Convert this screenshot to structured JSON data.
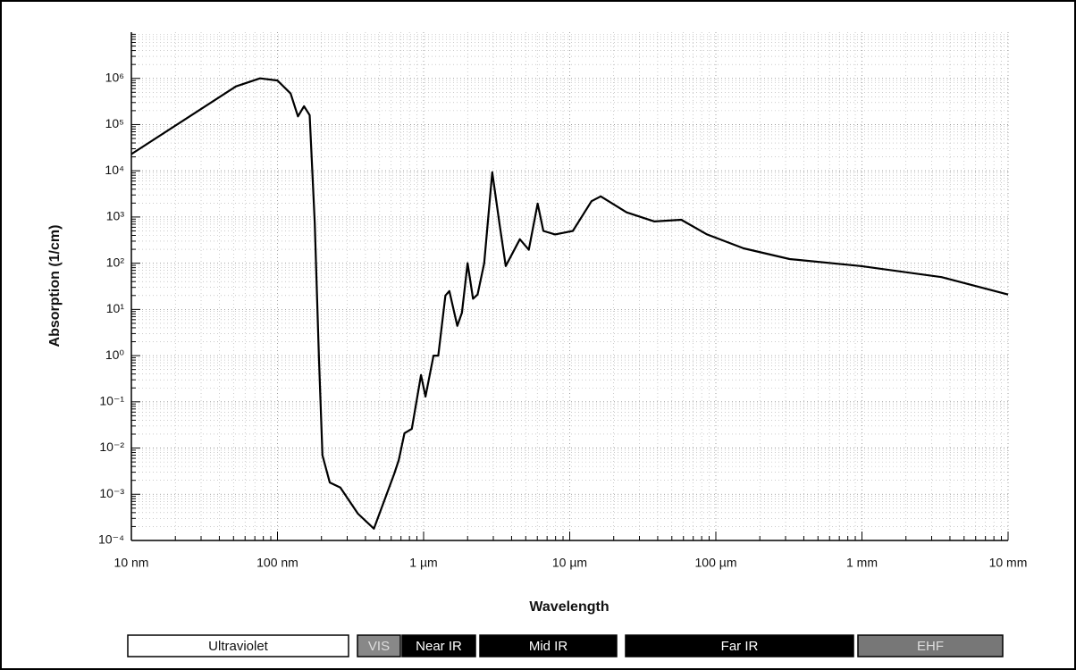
{
  "chart_data": {
    "type": "line",
    "xlabel": "Wavelength",
    "ylabel": "Absorption (1/cm)",
    "log_x": true,
    "log_y": true,
    "grid": true,
    "color": "#000000",
    "x": [
      10,
      52,
      76,
      100,
      123,
      138,
      152,
      166,
      180,
      192,
      203,
      228,
      269,
      355,
      457,
      630,
      676,
      740,
      830,
      960,
      1030,
      1170,
      1260,
      1410,
      1500,
      1700,
      1830,
      2000,
      2180,
      2340,
      2600,
      2950,
      3300,
      3650,
      4560,
      5250,
      6030,
      6600,
      7940,
      10500,
      14100,
      16300,
      24500,
      38000,
      58000,
      87000,
      155000,
      320000,
      980000,
      3500000,
      10000000
    ],
    "values": [
      23000,
      670000,
      1000000,
      900000,
      470000,
      150000,
      250000,
      160000,
      740,
      1,
      0.007,
      0.0018,
      0.0014,
      0.00038,
      0.00018,
      0.0028,
      0.0055,
      0.021,
      0.026,
      0.38,
      0.13,
      1,
      1,
      20,
      25,
      4.4,
      8.5,
      100,
      17,
      21,
      100,
      9300,
      740,
      87,
      330,
      195,
      1950,
      500,
      420,
      500,
      2200,
      2800,
      1260,
      800,
      870,
      420,
      210,
      123,
      87,
      50,
      21
    ],
    "xlim": [
      10,
      10000000
    ],
    "ylim": [
      0.0001,
      10000000
    ],
    "xticks": [
      {
        "value": 10,
        "label": "10 nm"
      },
      {
        "value": 100,
        "label": "100 nm"
      },
      {
        "value": 1000,
        "label": "1 µm"
      },
      {
        "value": 10000,
        "label": "10 µm"
      },
      {
        "value": 100000,
        "label": "100 µm"
      },
      {
        "value": 1000000,
        "label": "1 mm"
      },
      {
        "value": 10000000,
        "label": "10 mm"
      }
    ],
    "yticks": [
      {
        "value": 0.0001,
        "label": "10⁻⁴"
      },
      {
        "value": 0.001,
        "label": "10⁻³"
      },
      {
        "value": 0.01,
        "label": "10⁻²"
      },
      {
        "value": 0.1,
        "label": "10⁻¹"
      },
      {
        "value": 1,
        "label": "10⁰"
      },
      {
        "value": 10,
        "label": "10¹"
      },
      {
        "value": 100,
        "label": "10²"
      },
      {
        "value": 1000,
        "label": "10³"
      },
      {
        "value": 10000,
        "label": "10⁴"
      },
      {
        "value": 100000,
        "label": "10⁵"
      },
      {
        "value": 1000000,
        "label": "10⁶"
      }
    ],
    "bands": [
      "Ultraviolet",
      "VIS",
      "Near IR",
      "Mid IR",
      "Far IR",
      "EHF"
    ]
  }
}
